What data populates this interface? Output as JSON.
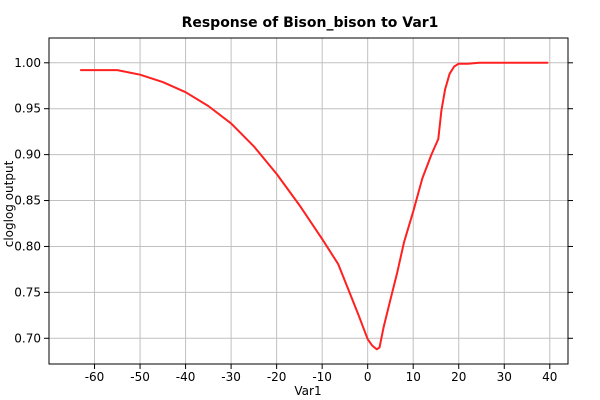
{
  "chart_data": {
    "type": "line",
    "title": "Response of Bison_bison to Var1",
    "xlabel": "Var1",
    "ylabel": "cloglog output",
    "xlim": [
      -70,
      44
    ],
    "ylim": [
      0.672,
      1.027
    ],
    "grid": true,
    "x_ticks": [
      -60,
      -50,
      -40,
      -30,
      -20,
      -10,
      0,
      10,
      20,
      30,
      40
    ],
    "x_tick_labels": [
      "-60",
      "-50",
      "-40",
      "-30",
      "-20",
      "-10",
      "0",
      "10",
      "20",
      "30",
      "40"
    ],
    "y_ticks": [
      0.7,
      0.75,
      0.8,
      0.85,
      0.9,
      0.95,
      1.0
    ],
    "y_tick_labels": [
      "0.70",
      "0.75",
      "0.80",
      "0.85",
      "0.90",
      "0.95",
      "1.00"
    ],
    "series": [
      {
        "color": "#ff2020",
        "x": [
          -63,
          -55,
          -50,
          -45,
          -40,
          -35,
          -30,
          -25,
          -20,
          -15,
          -10,
          -6.5,
          -4,
          -2,
          0,
          1,
          2,
          2.6,
          3.5,
          5,
          6.5,
          8,
          10,
          12,
          14,
          15.5,
          16.2,
          17,
          18,
          19,
          20,
          22,
          24.5,
          30,
          39.5
        ],
        "y": [
          0.992,
          0.992,
          0.987,
          0.979,
          0.968,
          0.953,
          0.934,
          0.909,
          0.879,
          0.845,
          0.808,
          0.781,
          0.75,
          0.725,
          0.699,
          0.692,
          0.688,
          0.69,
          0.712,
          0.742,
          0.772,
          0.805,
          0.838,
          0.874,
          0.9,
          0.917,
          0.948,
          0.971,
          0.988,
          0.996,
          0.999,
          0.999,
          1.0,
          1.0,
          1.0
        ]
      }
    ]
  }
}
